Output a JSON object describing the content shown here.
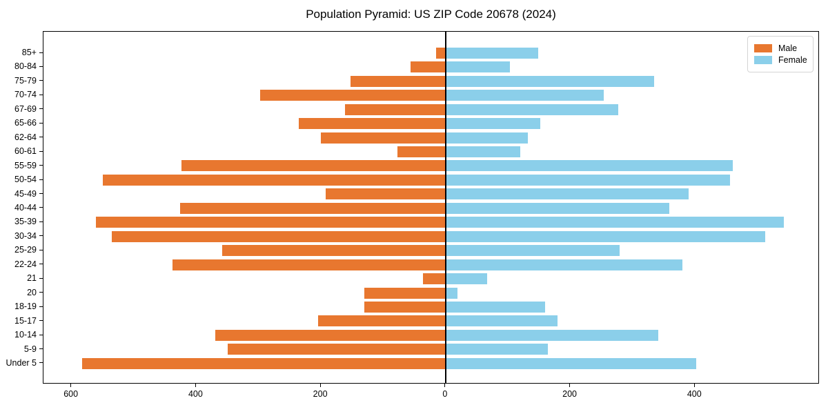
{
  "title": "Population Pyramid: US ZIP Code 20678 (2024)",
  "legend": {
    "male_label": "Male",
    "female_label": "Female"
  },
  "colors": {
    "male": "#E8772F",
    "female": "#8BCFEA",
    "axis": "#000000",
    "background": "#FFFFFF"
  },
  "chart_data": {
    "type": "bar",
    "subtype": "population-pyramid",
    "title": "Population Pyramid: US ZIP Code 20678 (2024)",
    "categories_top_to_bottom": [
      "85+",
      "80-84",
      "75-79",
      "70-74",
      "67-69",
      "65-66",
      "62-64",
      "60-61",
      "55-59",
      "50-54",
      "45-49",
      "40-44",
      "35-39",
      "30-34",
      "25-29",
      "22-24",
      "21",
      "20",
      "18-19",
      "15-17",
      "10-14",
      "5-9",
      "Under 5"
    ],
    "series": [
      {
        "name": "Male",
        "side": "left",
        "color": "#E8772F",
        "values": [
          15,
          56,
          153,
          297,
          161,
          236,
          200,
          77,
          424,
          550,
          192,
          426,
          561,
          535,
          358,
          438,
          36,
          130,
          130,
          204,
          369,
          349,
          583
        ]
      },
      {
        "name": "Female",
        "side": "right",
        "color": "#8BCFEA",
        "values": [
          148,
          103,
          334,
          254,
          277,
          152,
          132,
          120,
          461,
          456,
          390,
          359,
          542,
          513,
          279,
          380,
          67,
          19,
          160,
          180,
          341,
          164,
          402
        ]
      }
    ],
    "x_axis": {
      "xlim": [
        -645,
        600
      ],
      "tick_values": [
        -600,
        -400,
        -200,
        0,
        200,
        400
      ],
      "tick_labels": [
        "600",
        "400",
        "200",
        "0",
        "200",
        "400"
      ]
    },
    "legend_position": "upper right",
    "grid": false
  }
}
